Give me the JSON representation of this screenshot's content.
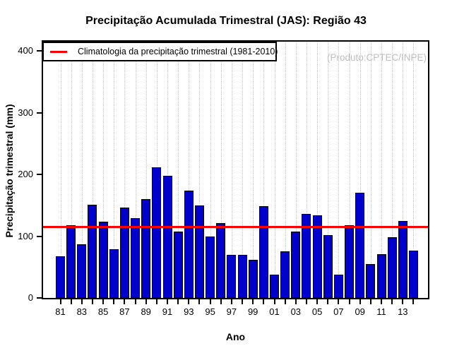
{
  "chart_data": {
    "type": "bar",
    "title": "Precipitação Acumulada Trimestral (JAS): Região 43",
    "xlabel": "Ano",
    "ylabel": "Precipitação trimestral (mm)",
    "annotation": "(Produto:CPTEC/INPE)",
    "legend": {
      "label": "Climatologia da precipitação trimestral (1981-2010)",
      "position": "top-left"
    },
    "categories": [
      "81",
      "82",
      "83",
      "84",
      "85",
      "86",
      "87",
      "88",
      "89",
      "90",
      "91",
      "92",
      "93",
      "94",
      "95",
      "96",
      "97",
      "98",
      "99",
      "00",
      "01",
      "02",
      "03",
      "04",
      "05",
      "06",
      "07",
      "08",
      "09",
      "10",
      "11",
      "12",
      "13",
      "14"
    ],
    "values": [
      68,
      118,
      87,
      151,
      123,
      79,
      146,
      129,
      160,
      212,
      198,
      107,
      174,
      150,
      100,
      121,
      70,
      70,
      62,
      149,
      38,
      75,
      108,
      136,
      134,
      102,
      38,
      118,
      170,
      55,
      71,
      98,
      125,
      77
    ],
    "climatology_value": 115,
    "y_ticks": [
      0,
      100,
      200,
      300,
      400
    ],
    "ylim": [
      0,
      415
    ],
    "x_label_every": 2,
    "grid": "vertical-dotted-per-year",
    "colors": {
      "bar": "#0000cd",
      "bar_border": "#000000",
      "climatology_line": "#ff0000",
      "gridline": "#c8c8c8",
      "annotation_text": "#bebebe",
      "axis": "#000000"
    }
  }
}
